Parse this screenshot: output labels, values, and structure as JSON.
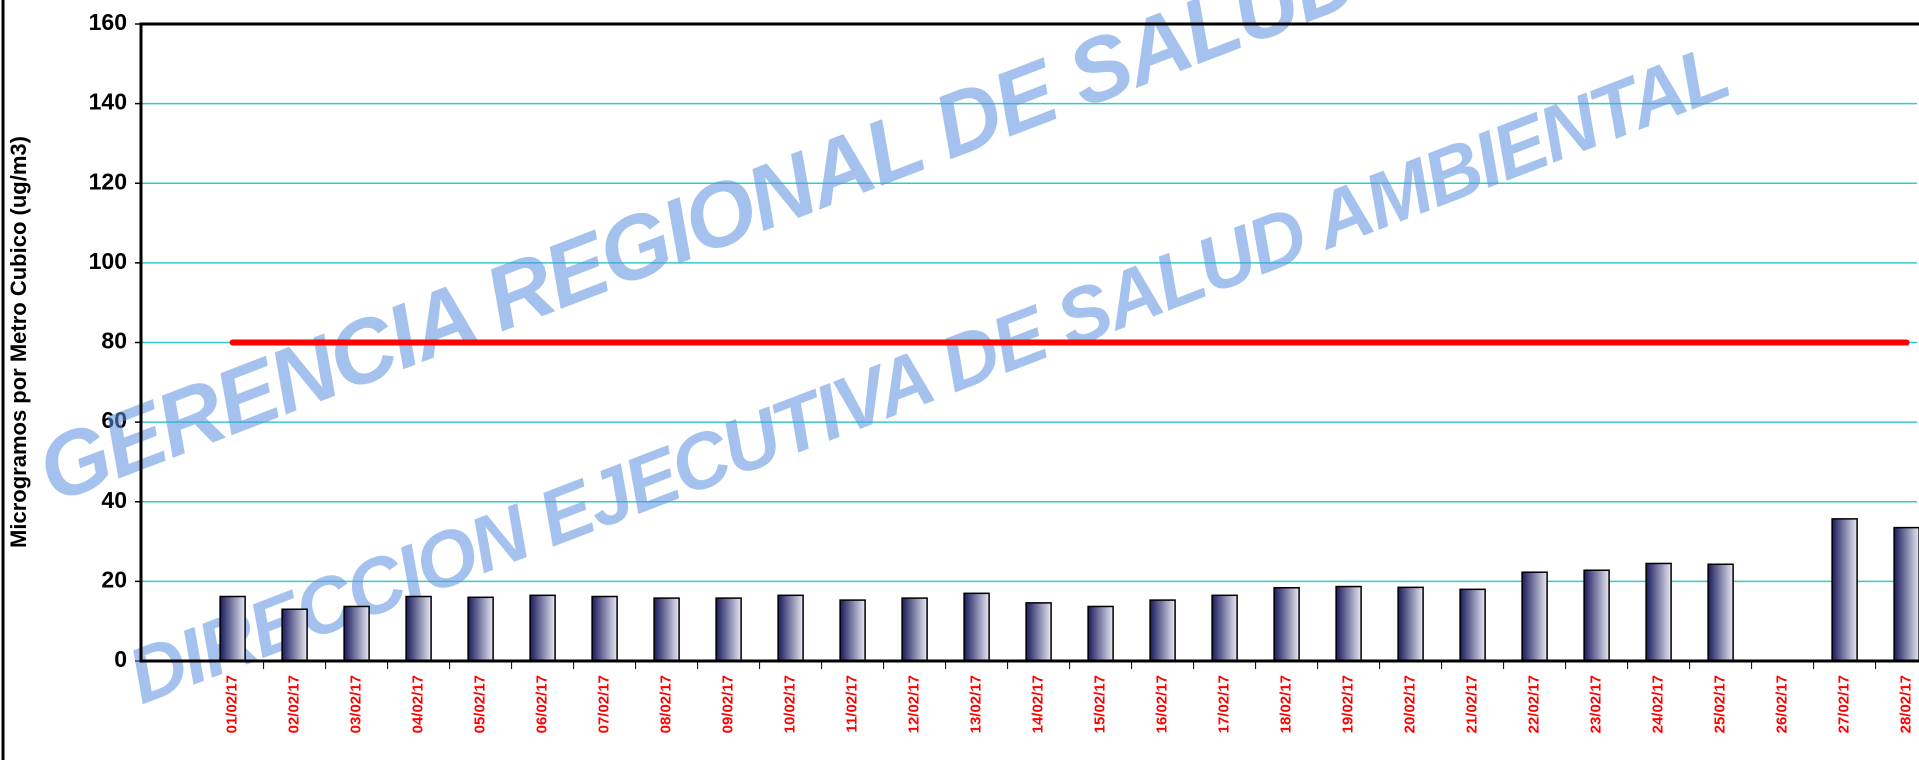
{
  "chart_data": {
    "type": "bar",
    "y_label": "Microgramos por Metro Cubico (ug/m3)",
    "categories": [
      "01/02/17",
      "02/02/17",
      "03/02/17",
      "04/02/17",
      "05/02/17",
      "06/02/17",
      "07/02/17",
      "08/02/17",
      "09/02/17",
      "10/02/17",
      "11/02/17",
      "12/02/17",
      "13/02/17",
      "14/02/17",
      "15/02/17",
      "16/02/17",
      "17/02/17",
      "18/02/17",
      "19/02/17",
      "20/02/17",
      "21/02/17",
      "22/02/17",
      "23/02/17",
      "24/02/17",
      "25/02/17",
      "26/02/17",
      "27/02/17",
      "28/02/17"
    ],
    "series": [
      {
        "type": "bar",
        "color": "#1a1a5e",
        "values": [
          16.2,
          13,
          13.7,
          16.2,
          16,
          16.5,
          16.2,
          15.8,
          15.8,
          16.5,
          15.3,
          15.8,
          17,
          14.6,
          13.7,
          15.3,
          16.5,
          18.4,
          18.7,
          18.5,
          18,
          22.3,
          22.8,
          24.5,
          24.3,
          null,
          35.7,
          33.5
        ]
      },
      {
        "type": "line",
        "color": "#ff0000",
        "values": [
          80,
          80,
          80,
          80,
          80,
          80,
          80,
          80,
          80,
          80,
          80,
          80,
          80,
          80,
          80,
          80,
          80,
          80,
          80,
          80,
          80,
          80,
          80,
          80,
          80,
          80,
          80,
          80
        ]
      }
    ],
    "ylim": [
      0,
      160
    ],
    "yticks": [
      0,
      20,
      40,
      60,
      80,
      100,
      120,
      140,
      160
    ],
    "grid": true,
    "grid_color": "#33cccc",
    "label_color": "#ff0000",
    "annotations": [
      "GERENCIA REGIONAL DE SALUD",
      "DIRECCION EJECUTIVA DE SALUD AMBIENTAL"
    ]
  }
}
